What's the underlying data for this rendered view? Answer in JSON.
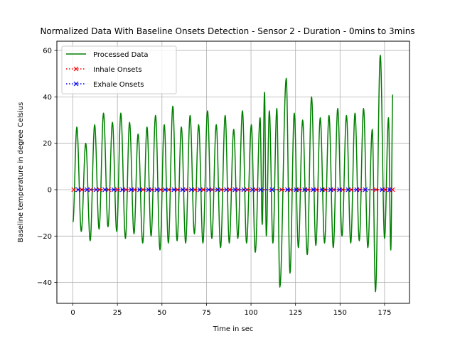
{
  "chart_data": {
    "type": "line",
    "title": "Normalized Data With Baseline Onsets Detection - Sensor 2 - Duration - 0mins to 3mins",
    "xlabel": "Time in sec",
    "ylabel": "Baseline temperature in degree Celsius",
    "xlim": [
      -9,
      189
    ],
    "ylim": [
      -49,
      64
    ],
    "xticks": [
      0,
      25,
      50,
      75,
      100,
      125,
      150,
      175
    ],
    "yticks": [
      -40,
      -20,
      0,
      20,
      40,
      60
    ],
    "grid": true,
    "legend_position": "top-left",
    "series": [
      {
        "name": "Processed Data",
        "style": "solid",
        "color": "#008000",
        "peaks": [
          [
            2.2,
            27
          ],
          [
            7.2,
            20
          ],
          [
            12.2,
            28
          ],
          [
            17.2,
            33
          ],
          [
            22.2,
            29
          ],
          [
            26.9,
            33
          ],
          [
            31.8,
            29
          ],
          [
            36.6,
            24
          ],
          [
            41.6,
            27
          ],
          [
            46.4,
            32
          ],
          [
            51.3,
            28
          ],
          [
            56.1,
            36
          ],
          [
            60.9,
            27
          ],
          [
            65.8,
            32
          ],
          [
            70.6,
            28
          ],
          [
            75.6,
            34
          ],
          [
            80.5,
            28
          ],
          [
            85.5,
            32
          ],
          [
            90.3,
            26
          ],
          [
            95.2,
            34
          ],
          [
            100.2,
            28
          ],
          [
            105.1,
            31
          ],
          [
            107.6,
            42
          ],
          [
            110.3,
            34
          ],
          [
            114.5,
            35
          ],
          [
            119.8,
            48
          ],
          [
            124.3,
            33
          ],
          [
            129.0,
            30
          ],
          [
            134.0,
            40
          ],
          [
            138.9,
            31
          ],
          [
            143.8,
            32
          ],
          [
            148.7,
            35
          ],
          [
            153.6,
            32
          ],
          [
            158.4,
            33
          ],
          [
            163.2,
            35
          ],
          [
            168.1,
            26
          ],
          [
            172.6,
            58
          ],
          [
            177.2,
            31
          ],
          [
            179.6,
            41
          ]
        ],
        "troughs": [
          [
            0,
            -14
          ],
          [
            4.7,
            -18
          ],
          [
            9.7,
            -22
          ],
          [
            14.7,
            -17
          ],
          [
            19.7,
            -16
          ],
          [
            24.6,
            -18
          ],
          [
            29.5,
            -21
          ],
          [
            34.3,
            -19
          ],
          [
            39.2,
            -23
          ],
          [
            43.9,
            -20
          ],
          [
            48.9,
            -26
          ],
          [
            53.6,
            -23
          ],
          [
            58.5,
            -22
          ],
          [
            63.3,
            -23
          ],
          [
            68.2,
            -19
          ],
          [
            73.0,
            -23
          ],
          [
            78.0,
            -21
          ],
          [
            82.9,
            -25
          ],
          [
            87.8,
            -23
          ],
          [
            92.6,
            -21
          ],
          [
            97.5,
            -23
          ],
          [
            102.4,
            -27
          ],
          [
            106.3,
            -15
          ],
          [
            108.6,
            -20
          ],
          [
            112.3,
            -23
          ],
          [
            116.2,
            -42
          ],
          [
            121.9,
            -36
          ],
          [
            126.6,
            -25
          ],
          [
            131.6,
            -28
          ],
          [
            136.4,
            -24
          ],
          [
            141.3,
            -23
          ],
          [
            146.2,
            -25
          ],
          [
            151.1,
            -20
          ],
          [
            156.0,
            -23
          ],
          [
            160.8,
            -22
          ],
          [
            165.6,
            -25
          ],
          [
            169.9,
            -44
          ],
          [
            175.0,
            -21
          ],
          [
            178.5,
            -26
          ]
        ]
      },
      {
        "name": "Inhale Onsets",
        "style": "dotted",
        "marker": "x",
        "color": "#ff0000",
        "x": [
          0.5,
          5.0,
          10.0,
          15.0,
          20.0,
          25.0,
          29.8,
          34.5,
          39.4,
          44.2,
          49.2,
          53.8,
          58.7,
          63.5,
          68.5,
          73.2,
          78.2,
          83.2,
          88.0,
          92.8,
          97.8,
          102.7,
          117.2,
          122.1,
          127.0,
          131.9,
          136.8,
          141.6,
          146.5,
          151.3,
          156.3,
          161.1,
          170.2,
          175.3,
          179.5
        ],
        "y": 0
      },
      {
        "name": "Exhale Onsets",
        "style": "dotted",
        "marker": "x",
        "color": "#0000ff",
        "x": [
          3.0,
          8.0,
          13.0,
          18.0,
          23.0,
          27.9,
          32.8,
          37.5,
          42.5,
          47.2,
          51.7,
          56.8,
          61.7,
          66.6,
          71.4,
          76.3,
          81.3,
          86.2,
          91.1,
          96.0,
          100.9,
          105.5,
          111.8,
          120.5,
          125.4,
          130.2,
          135.0,
          140.0,
          144.8,
          149.7,
          154.6,
          159.4,
          164.2,
          173.7,
          178.0
        ],
        "y": 0
      }
    ]
  }
}
